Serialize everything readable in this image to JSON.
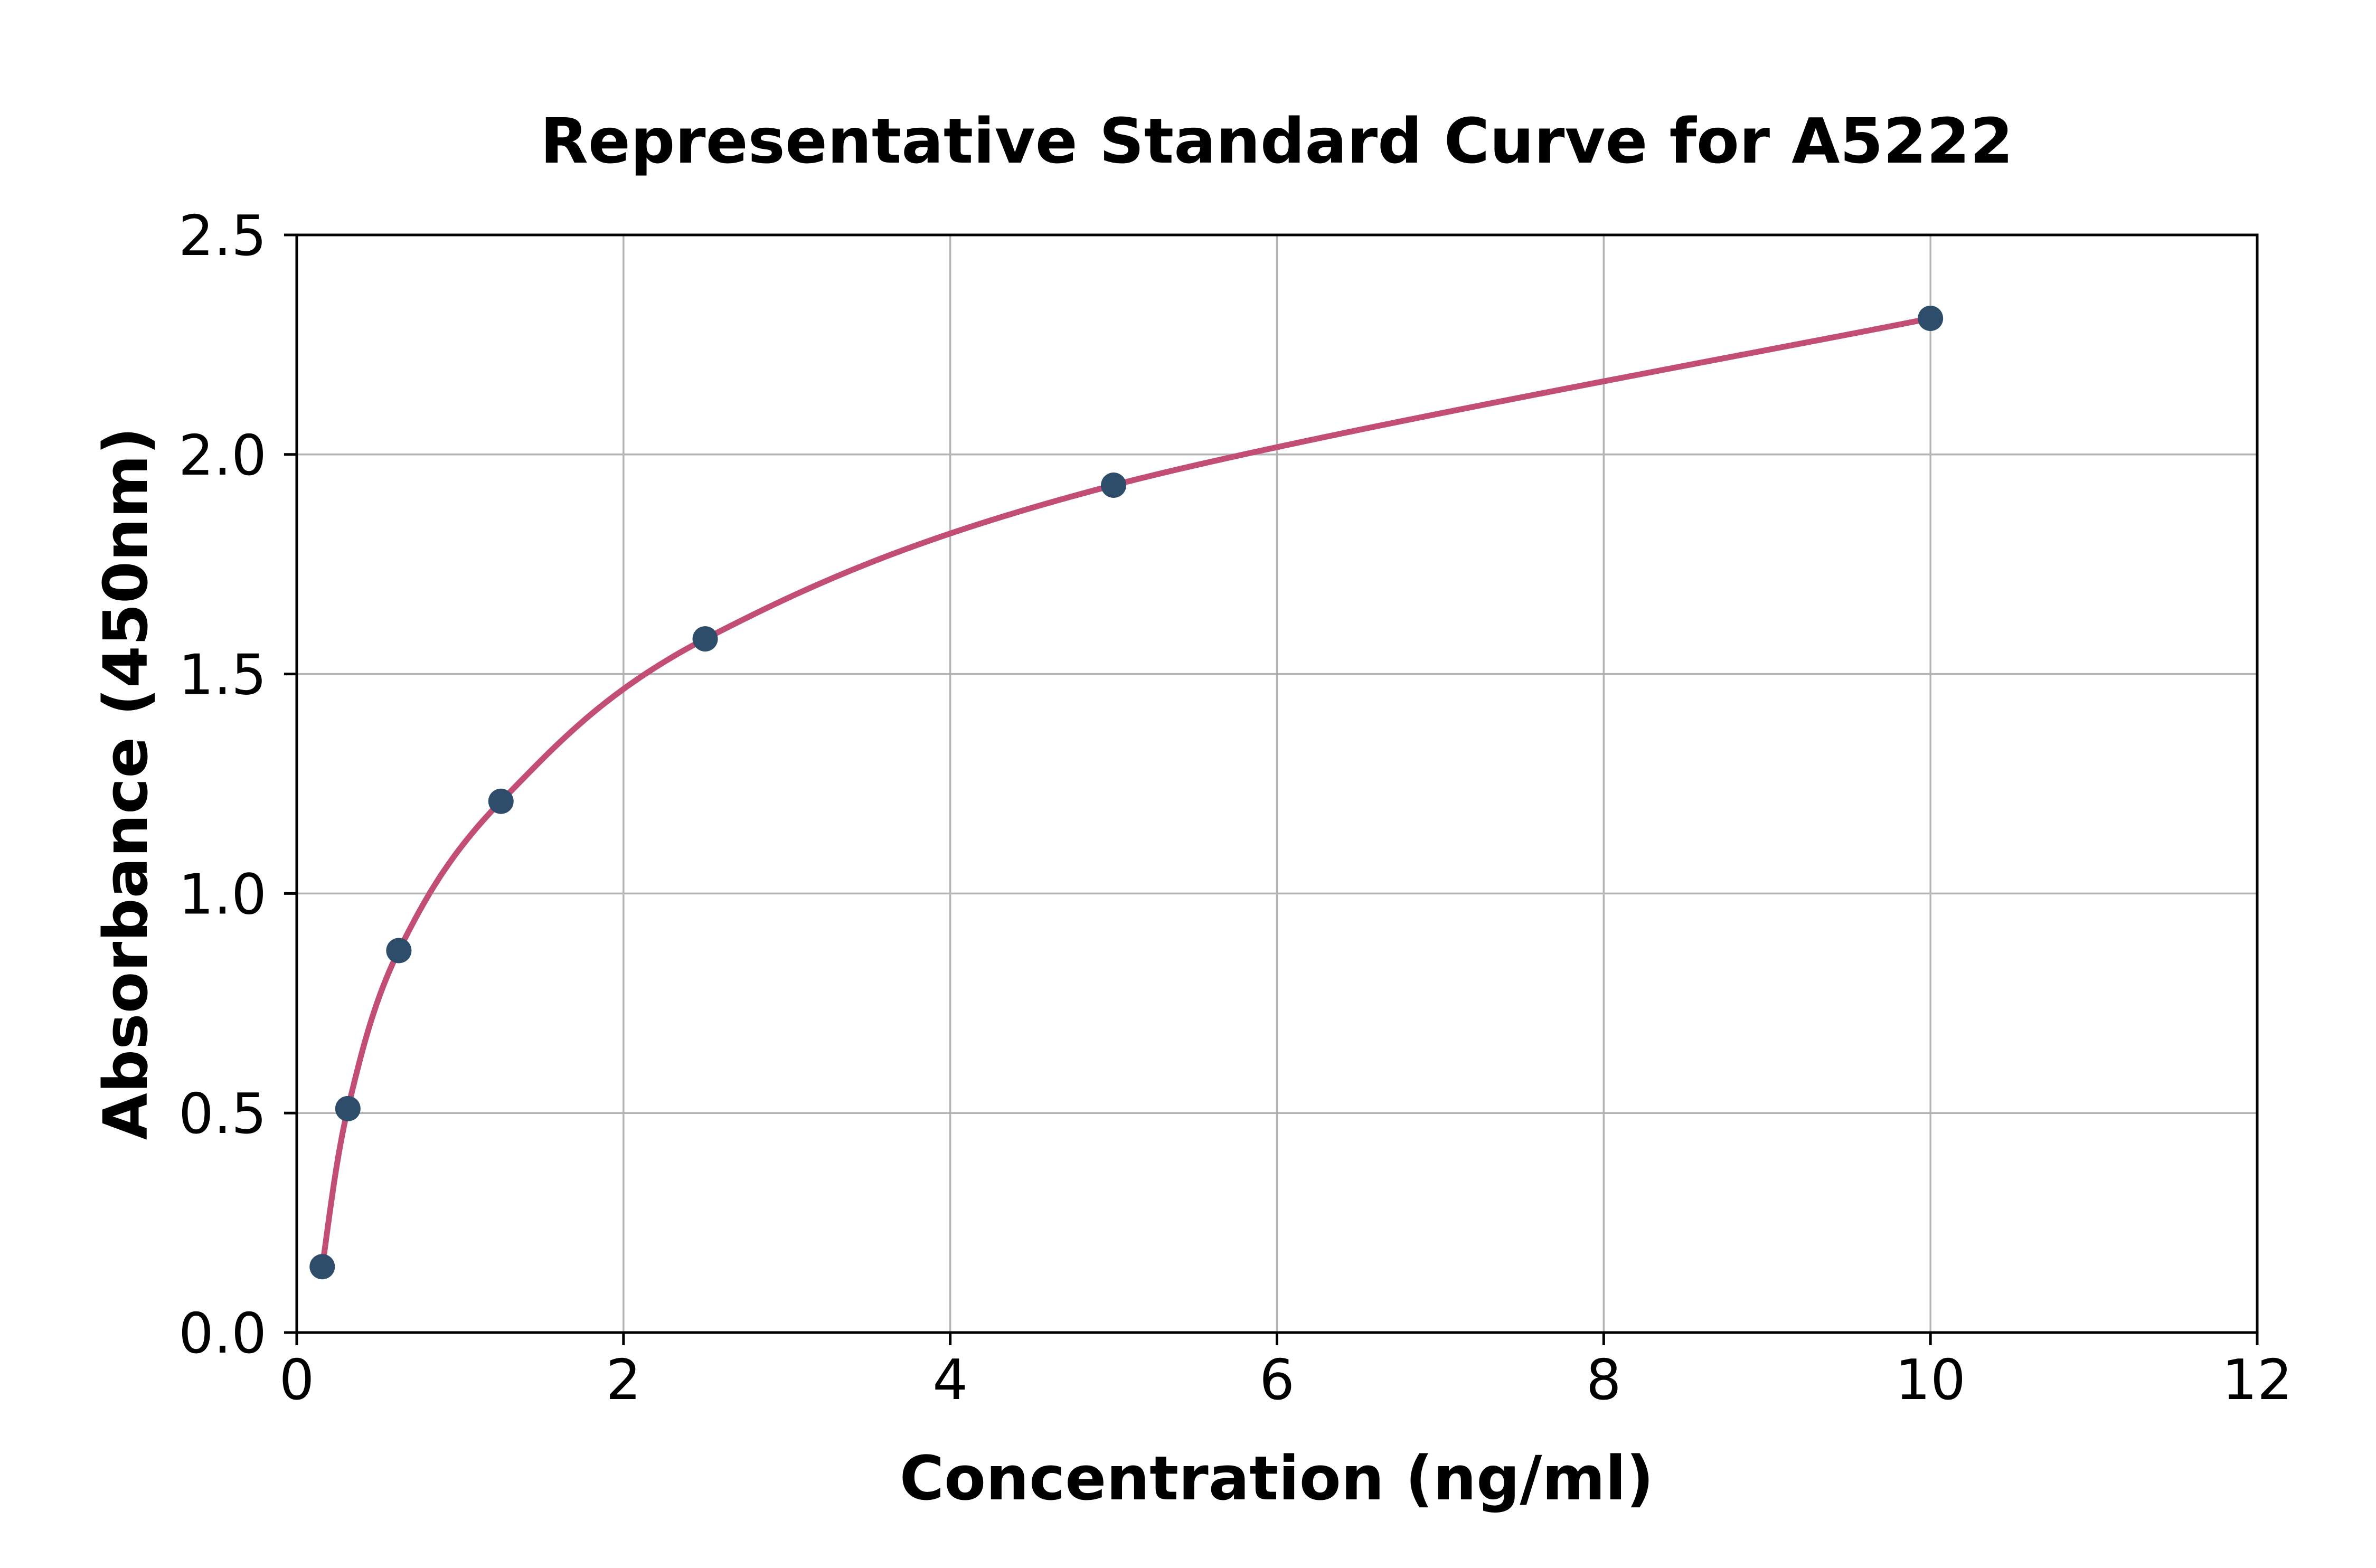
{
  "chart_data": {
    "type": "scatter",
    "title": "Representative Standard Curve for A5222",
    "xlabel": "Concentration (ng/ml)",
    "ylabel": "Absorbance (450nm)",
    "xlim": [
      0,
      12
    ],
    "ylim": [
      0,
      2.5
    ],
    "xticks": [
      0,
      2,
      4,
      6,
      8,
      10,
      12
    ],
    "xtick_labels": [
      "0",
      "2",
      "4",
      "6",
      "8",
      "10",
      "12"
    ],
    "yticks": [
      0,
      0.5,
      1.0,
      1.5,
      2.0,
      2.5
    ],
    "ytick_labels": [
      "0.0",
      "0.5",
      "1.0",
      "1.5",
      "2.0",
      "2.5"
    ],
    "grid": true,
    "legend": "none",
    "series": [
      {
        "name": "standard-points",
        "x": [
          0.156,
          0.313,
          0.625,
          1.25,
          2.5,
          5,
          10
        ],
        "y": [
          0.15,
          0.51,
          0.87,
          1.21,
          1.58,
          1.93,
          2.31
        ]
      }
    ],
    "fit_curve": true,
    "colors": {
      "curve": "#c24d75",
      "marker": "#2d4d6b",
      "grid": "#b4b4b4",
      "spine": "#000000",
      "text": "#000000",
      "background": "#ffffff"
    }
  }
}
